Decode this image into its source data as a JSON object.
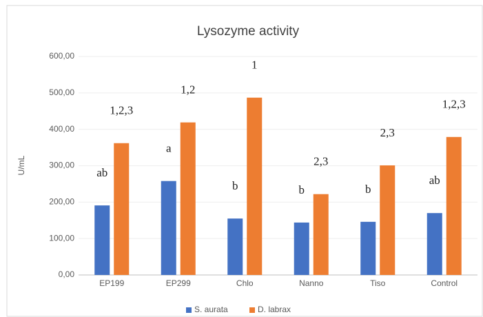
{
  "chart_data": {
    "type": "bar",
    "title": "Lysozyme activity",
    "ylabel": "U/mL",
    "categories": [
      "EP199",
      "EP299",
      "Chlo",
      "Nanno",
      "Tiso",
      "Control"
    ],
    "series": [
      {
        "name": "S. aurata",
        "color": "#4472c4",
        "values": [
          191,
          258,
          155,
          144,
          146,
          170
        ],
        "annotations": [
          "ab",
          "a",
          "b",
          "b",
          "b",
          "ab"
        ]
      },
      {
        "name": "D. labrax",
        "color": "#ed7d31",
        "values": [
          362,
          419,
          487,
          222,
          301,
          379
        ],
        "annotations": [
          "1,2,3",
          "1,2",
          "1",
          "2,3",
          "2,3",
          "1,2,3"
        ]
      }
    ],
    "ylim": [
      0,
      600
    ],
    "yticks": [
      {
        "value": 0,
        "label": "0,00"
      },
      {
        "value": 100,
        "label": "100,00"
      },
      {
        "value": 200,
        "label": "200,00"
      },
      {
        "value": 300,
        "label": "300,00"
      },
      {
        "value": 400,
        "label": "400,00"
      },
      {
        "value": 500,
        "label": "500,00"
      },
      {
        "value": 600,
        "label": "600,00"
      }
    ],
    "grid": true,
    "legend": "bottom"
  }
}
